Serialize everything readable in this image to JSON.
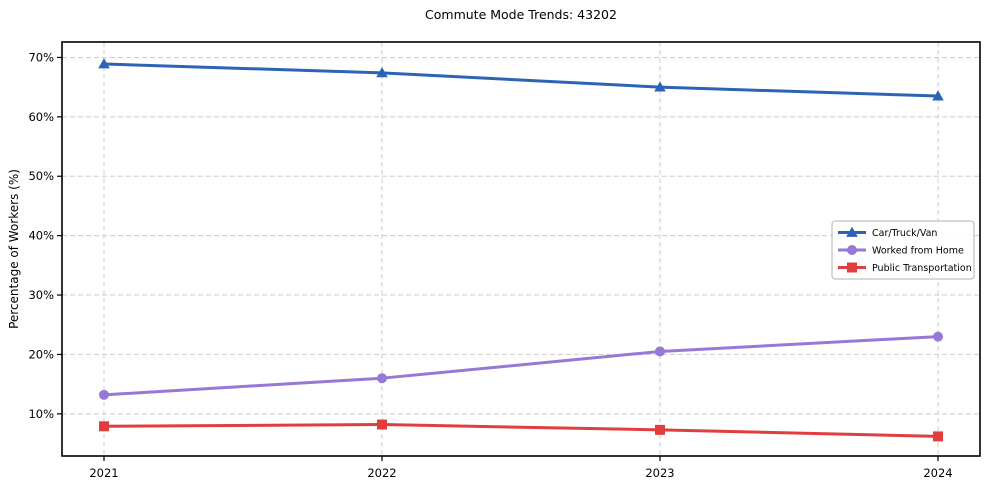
{
  "chart_data": {
    "type": "line",
    "title": "Commute Mode Trends: 43202",
    "xlabel": "",
    "ylabel": "Percentage of Workers (%)",
    "x_labels": [
      "2021",
      "2022",
      "2023",
      "2024"
    ],
    "y_ticks": [
      10,
      20,
      30,
      40,
      50,
      60,
      70
    ],
    "y_tick_suffix": "%",
    "ylim": [
      2.9,
      72.6
    ],
    "grid": "dashed-both-axes",
    "grid_color": "#cccccc",
    "frame_color": "#000000",
    "background_color": "#ffffff",
    "legend_position": "center right",
    "series": [
      {
        "name": "Car/Truck/Van",
        "color": "#2d63b5",
        "marker": "triangle",
        "values": [
          68.9,
          67.4,
          65.0,
          63.5
        ]
      },
      {
        "name": "Worked from Home",
        "color": "#9678d6",
        "marker": "circle",
        "values": [
          13.2,
          16.0,
          20.5,
          23.0
        ]
      },
      {
        "name": "Public Transportation",
        "color": "#e03e3e",
        "marker": "square",
        "values": [
          7.9,
          8.2,
          7.3,
          6.2
        ]
      }
    ]
  }
}
